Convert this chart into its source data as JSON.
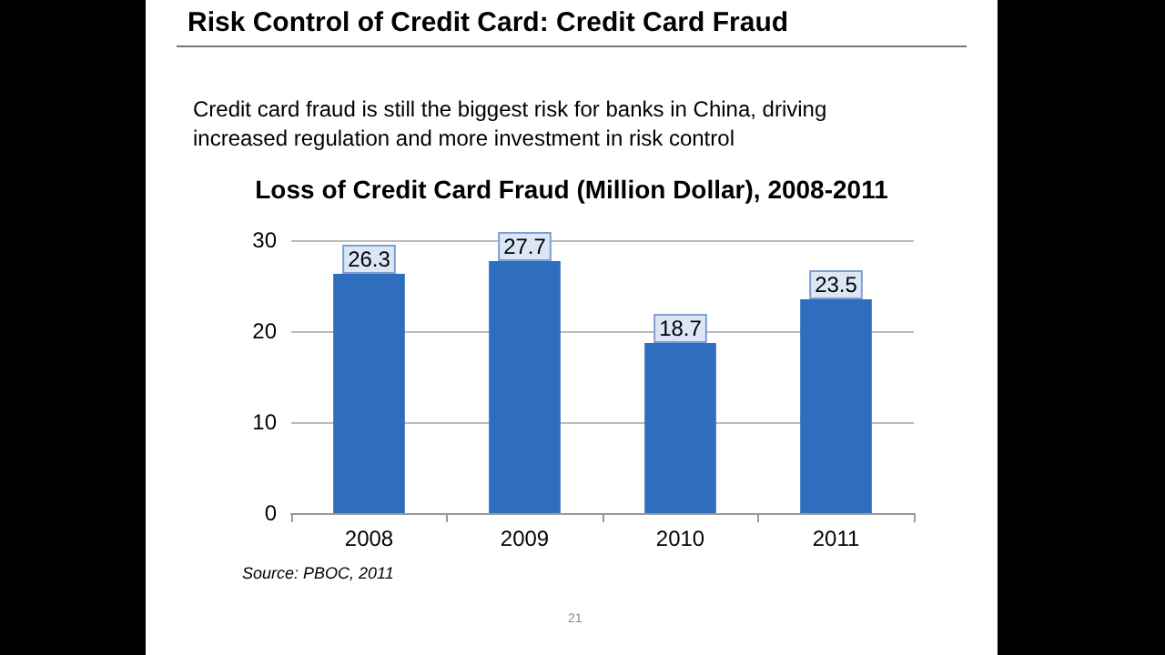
{
  "chart_data": {
    "type": "bar",
    "title": "Risk Control of Credit Card: Credit Card Fraud",
    "subtitle": "Credit card fraud is still the biggest risk for banks in China, driving increased regulation and more investment in risk control",
    "annotations": [
      "Loss of Credit Card Fraud (Million Dollar), 2008-2011",
      "Source: PBOC, 2011",
      "21"
    ],
    "categories": [
      "2008",
      "2009",
      "2010",
      "2011"
    ],
    "values": [
      26.3,
      27.7,
      18.7,
      23.5
    ],
    "color": "#2f6ebe",
    "ylim": [
      0,
      30
    ],
    "yticks": [
      0,
      10,
      20,
      30
    ],
    "grid": "y",
    "data_labels": true
  }
}
